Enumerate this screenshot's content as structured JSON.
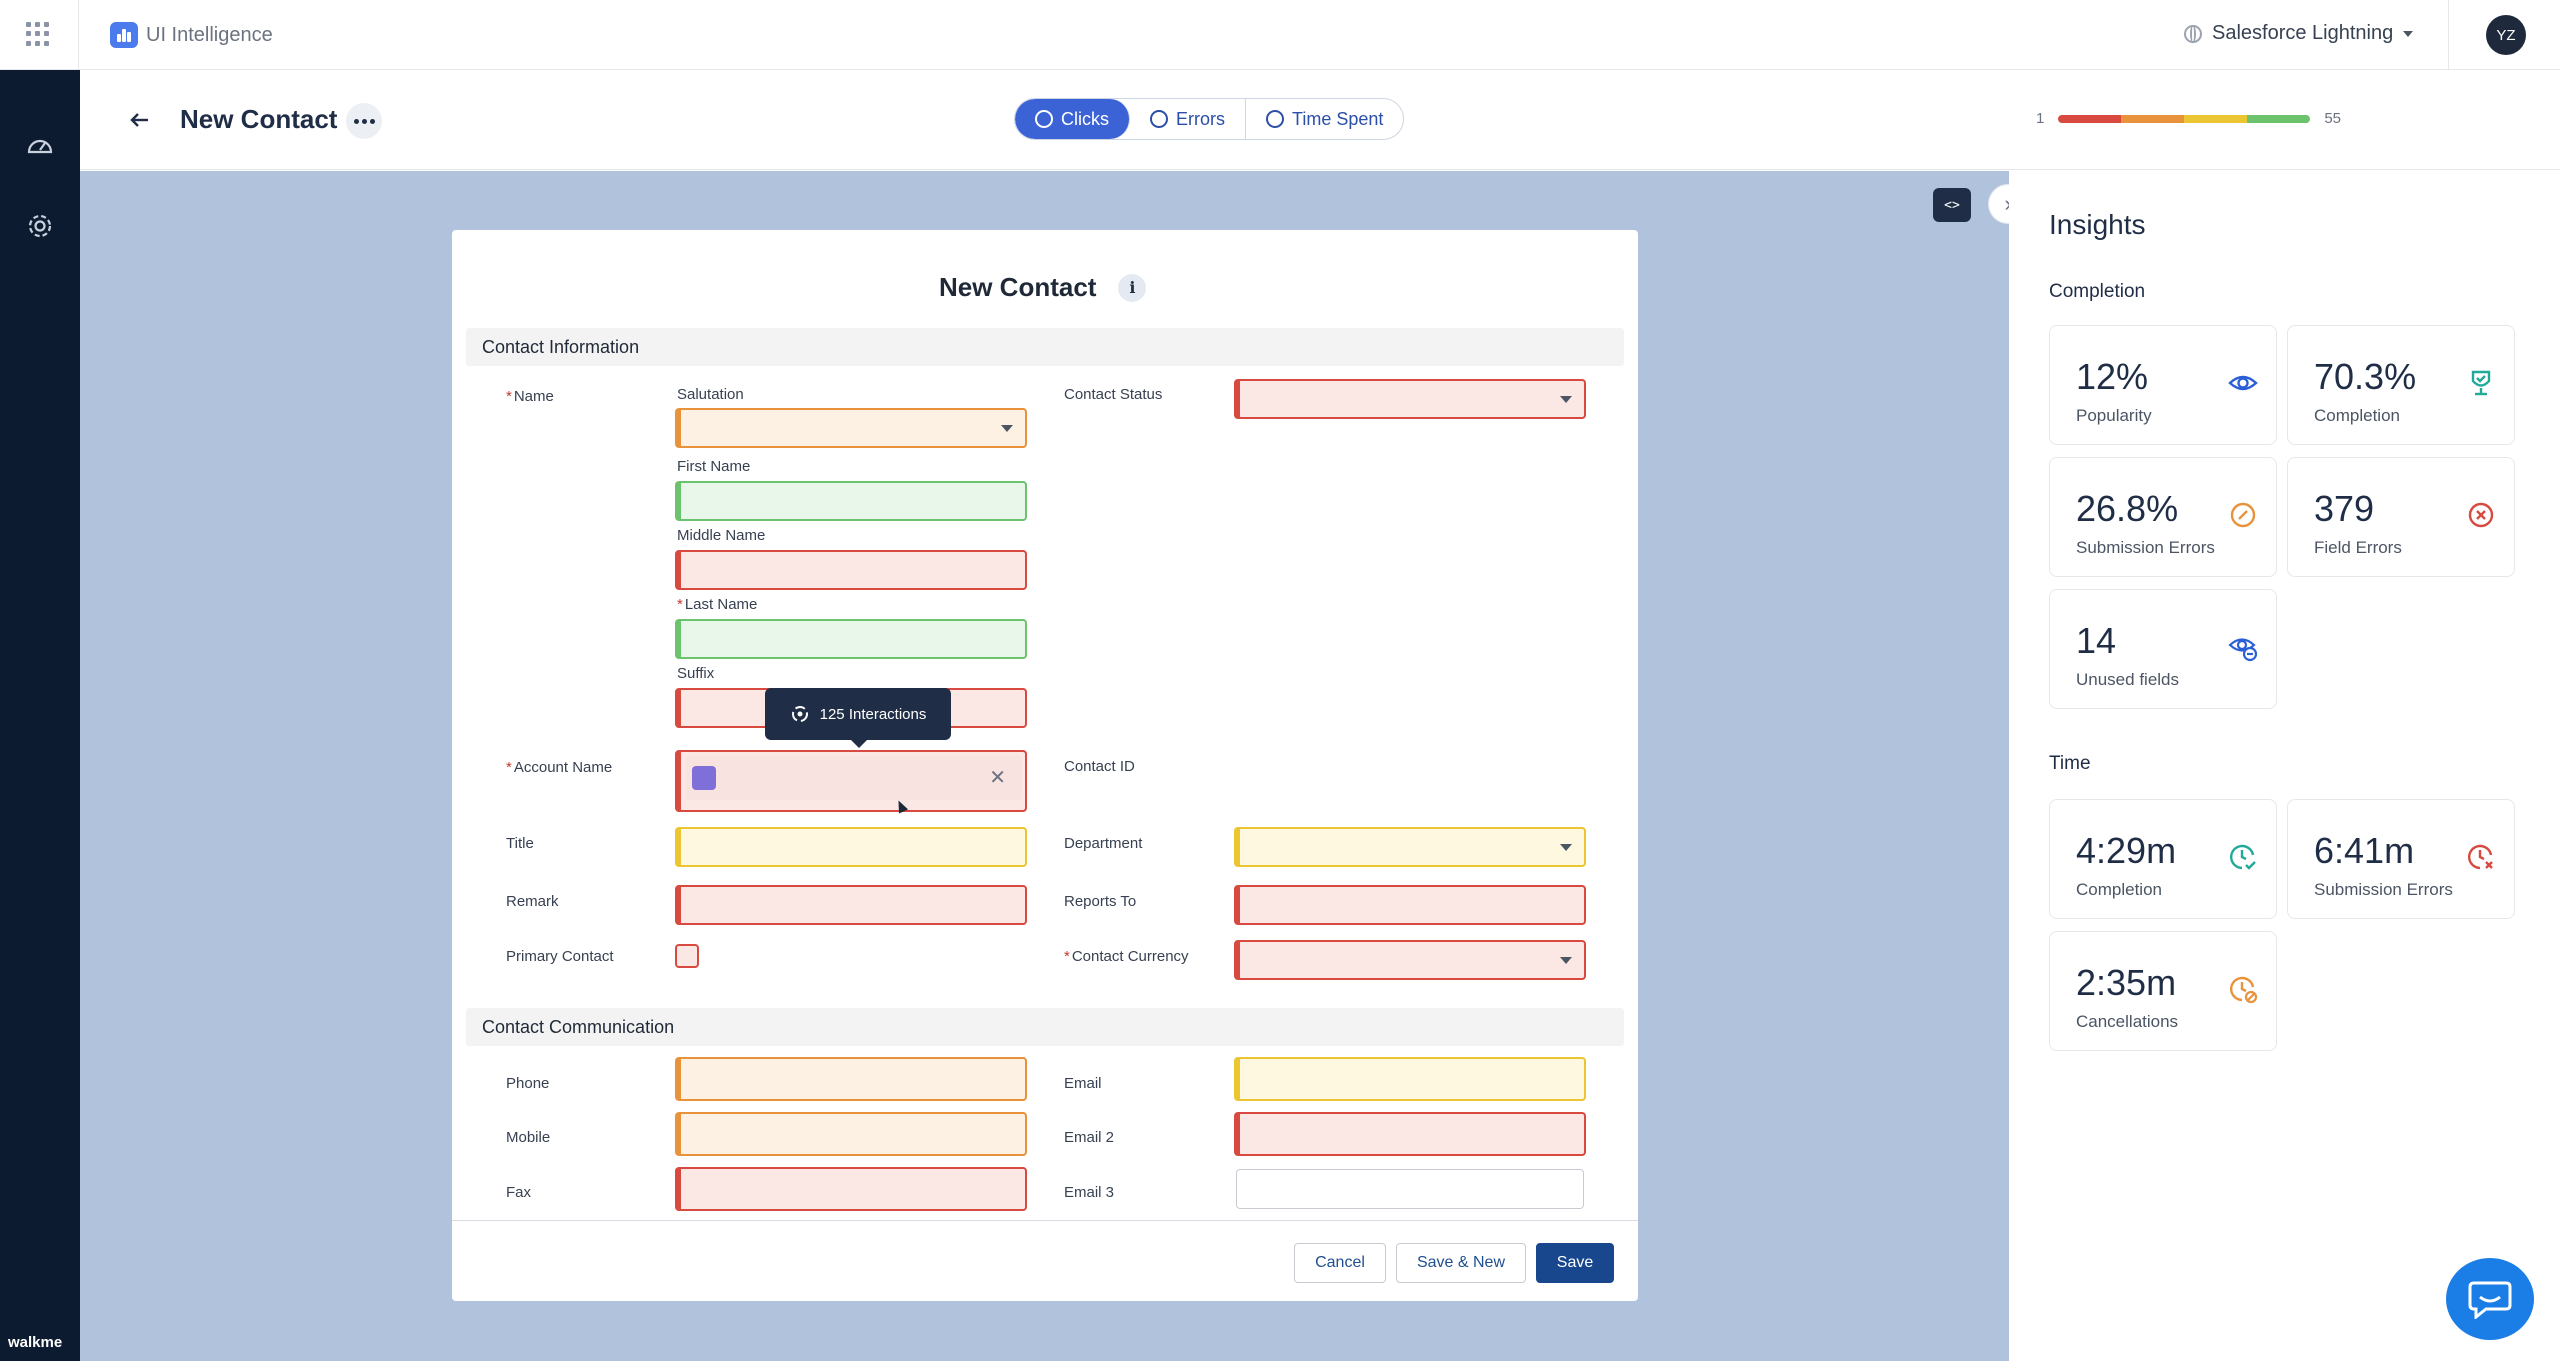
{
  "app": {
    "name": "UI Intelligence",
    "environment": "Salesforce Lightning",
    "user_initials": "YZ"
  },
  "header": {
    "title": "New Contact",
    "modes": [
      {
        "label": "Clicks",
        "active": true
      },
      {
        "label": "Errors",
        "active": false
      },
      {
        "label": "Time Spent",
        "active": false
      }
    ],
    "scale": {
      "min": "1",
      "max": "55"
    }
  },
  "form": {
    "title": "New Contact",
    "sections": {
      "info": "Contact Information",
      "comm": "Contact Communication"
    },
    "labels": {
      "name": "Name",
      "salutation": "Salutation",
      "first_name": "First Name",
      "middle_name": "Middle Name",
      "last_name": "Last Name",
      "suffix": "Suffix",
      "account_name": "Account Name",
      "title": "Title",
      "remark": "Remark",
      "primary_contact": "Primary Contact",
      "contact_status": "Contact Status",
      "contact_id": "Contact ID",
      "department": "Department",
      "reports_to": "Reports To",
      "contact_currency": "Contact Currency",
      "phone": "Phone",
      "mobile": "Mobile",
      "fax": "Fax",
      "email": "Email",
      "email2": "Email 2",
      "email3": "Email 3"
    },
    "required_mark": "*",
    "tooltip": "125 Interactions",
    "buttons": {
      "cancel": "Cancel",
      "save_new": "Save & New",
      "save": "Save"
    }
  },
  "heat_colors": {
    "low": "#6cc36e",
    "mid_low": "#ecc532",
    "mid_high": "#e8933b",
    "high": "#d8493f"
  },
  "insights": {
    "title": "Insights",
    "completion_heading": "Completion",
    "time_heading": "Time",
    "completion_tiles": [
      {
        "value": "12%",
        "caption": "Popularity",
        "icon": "eye-icon"
      },
      {
        "value": "70.3%",
        "caption": "Completion",
        "icon": "trophy-icon"
      },
      {
        "value": "26.8%",
        "caption": "Submission Errors",
        "icon": "slash-circle-icon"
      },
      {
        "value": "379",
        "caption": "Field Errors",
        "icon": "x-circle-icon"
      },
      {
        "value": "14",
        "caption": "Unused fields",
        "icon": "eye-unused-icon"
      }
    ],
    "time_tiles": [
      {
        "value": "4:29m",
        "caption": "Completion",
        "icon": "clock-check-icon"
      },
      {
        "value": "6:41m",
        "caption": "Submission Errors",
        "icon": "clock-x-icon"
      },
      {
        "value": "2:35m",
        "caption": "Cancellations",
        "icon": "clock-cancel-icon"
      }
    ]
  },
  "rail": {
    "brand": "walkme"
  }
}
